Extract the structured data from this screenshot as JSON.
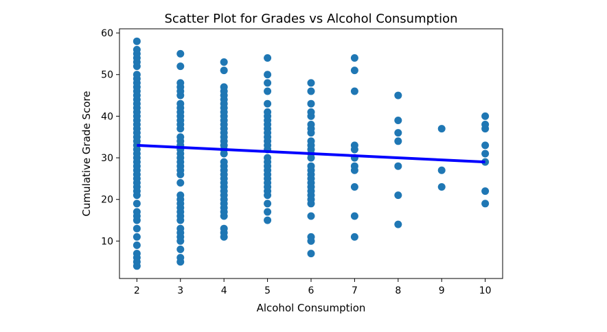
{
  "chart_data": {
    "type": "scatter",
    "title": "Scatter Plot for Grades vs Alcohol Consumption",
    "xlabel": "Alcohol Consumption",
    "ylabel": "Cumulative Grade Score",
    "xlim": [
      1.6,
      10.4
    ],
    "ylim": [
      1,
      61
    ],
    "xticks": [
      2,
      3,
      4,
      5,
      6,
      7,
      8,
      9,
      10
    ],
    "yticks": [
      10,
      20,
      30,
      40,
      50,
      60
    ],
    "grid": false,
    "colors": {
      "points": "#1f77b4",
      "fit_line": "#0000ff",
      "axes": "#000000"
    },
    "series": [
      {
        "points": [
          {
            "x": 2,
            "y": [
              4,
              5,
              6,
              7,
              9,
              11,
              13,
              15,
              16,
              17,
              19,
              21,
              22,
              23,
              24,
              25,
              26,
              27,
              28,
              29,
              30,
              31,
              32,
              33,
              34,
              35,
              36,
              37,
              38,
              39,
              40,
              41,
              42,
              43,
              44,
              45,
              46,
              47,
              48,
              49,
              50,
              52,
              53,
              54,
              55,
              56,
              58
            ]
          },
          {
            "x": 3,
            "y": [
              5,
              6,
              8,
              10,
              11,
              12,
              13,
              15,
              16,
              17,
              18,
              19,
              20,
              21,
              24,
              26,
              27,
              28,
              29,
              30,
              31,
              32,
              33,
              34,
              35,
              37,
              38,
              39,
              40,
              41,
              42,
              43,
              45,
              46,
              47,
              48,
              52,
              55
            ]
          },
          {
            "x": 4,
            "y": [
              11,
              12,
              13,
              16,
              17,
              18,
              19,
              20,
              21,
              22,
              23,
              24,
              25,
              26,
              27,
              28,
              29,
              31,
              32,
              33,
              34,
              35,
              36,
              37,
              38,
              39,
              40,
              41,
              42,
              43,
              44,
              45,
              46,
              47,
              51,
              53
            ]
          },
          {
            "x": 5,
            "y": [
              15,
              17,
              19,
              21,
              22,
              23,
              24,
              25,
              26,
              27,
              28,
              29,
              30,
              32,
              33,
              34,
              35,
              36,
              37,
              38,
              39,
              40,
              41,
              43,
              46,
              48,
              50,
              54
            ]
          },
          {
            "x": 6,
            "y": [
              7,
              10,
              11,
              16,
              19,
              20,
              21,
              22,
              23,
              24,
              25,
              26,
              27,
              28,
              30,
              31,
              32,
              33,
              34,
              36,
              37,
              38,
              40,
              41,
              43,
              46,
              48
            ]
          },
          {
            "x": 7,
            "y": [
              11,
              16,
              23,
              27,
              28,
              30,
              32,
              33,
              46,
              51,
              54
            ]
          },
          {
            "x": 8,
            "y": [
              14,
              21,
              28,
              34,
              36,
              39,
              45
            ]
          },
          {
            "x": 9,
            "y": [
              23,
              27,
              37
            ]
          },
          {
            "x": 10,
            "y": [
              19,
              22,
              29,
              31,
              33,
              37,
              38,
              40
            ]
          }
        ]
      }
    ],
    "fit_line": {
      "x": [
        2,
        10
      ],
      "y": [
        33,
        29
      ]
    }
  }
}
